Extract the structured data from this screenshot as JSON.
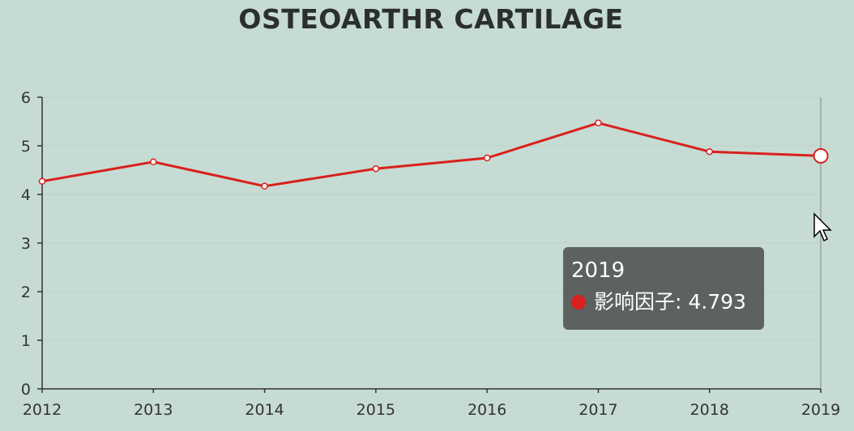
{
  "chart_data": {
    "type": "line",
    "title": "OSTEOARTHR CARTILAGE",
    "x": [
      "2012",
      "2013",
      "2014",
      "2015",
      "2016",
      "2017",
      "2018",
      "2019"
    ],
    "series": [
      {
        "name": "影响因子",
        "values": [
          4.27,
          4.67,
          4.17,
          4.53,
          4.75,
          5.47,
          4.88,
          4.793
        ],
        "color": "#d9201c"
      }
    ],
    "ylim": [
      0,
      6
    ],
    "yticks": [
      "0",
      "1",
      "2",
      "3",
      "4",
      "5",
      "6"
    ],
    "grid": true,
    "xlabel": "",
    "ylabel": ""
  },
  "tooltip": {
    "title": "2019",
    "series_name": "影响因子",
    "value": "4.793",
    "label": "影响因子: 4.793"
  },
  "colors": {
    "background": "#c6dbd3",
    "line": "#d9201c",
    "tooltip": "#5d6260"
  }
}
